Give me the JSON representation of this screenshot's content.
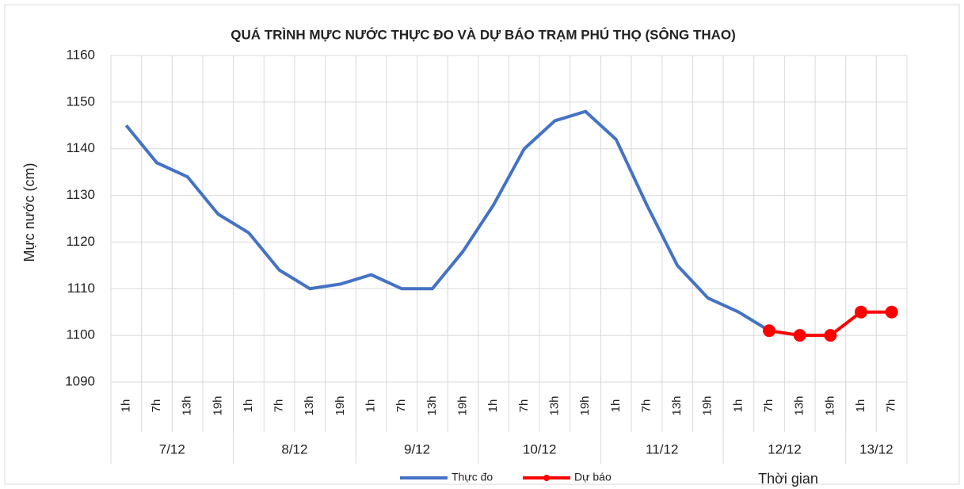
{
  "chart_data": {
    "type": "line",
    "title": "QUÁ TRÌNH MỰC NƯỚC THỰC ĐO VÀ DỰ BÁO TRẠM PHÚ THỌ (SÔNG THAO)",
    "y_label": "Mực nước (cm)",
    "x_label": "Thời gian",
    "categories": [
      "1h",
      "7h",
      "13h",
      "19h",
      "1h",
      "7h",
      "13h",
      "19h",
      "1h",
      "7h",
      "13h",
      "19h",
      "1h",
      "7h",
      "13h",
      "19h",
      "1h",
      "7h",
      "13h",
      "19h",
      "1h",
      "7h",
      "13h",
      "19h",
      "1h",
      "7h"
    ],
    "groups": [
      {
        "label": "7/12",
        "span": 4
      },
      {
        "label": "8/12",
        "span": 4
      },
      {
        "label": "9/12",
        "span": 4
      },
      {
        "label": "10/12",
        "span": 4
      },
      {
        "label": "11/12",
        "span": 4
      },
      {
        "label": "12/12",
        "span": 4
      },
      {
        "label": "13/12",
        "span": 2
      }
    ],
    "series": [
      {
        "name": "Thực đo",
        "color": "#4472c4",
        "markers": false,
        "values": [
          1145,
          1137,
          1134,
          1126,
          1122,
          1114,
          1110,
          1111,
          1113,
          1110,
          1110,
          1118,
          1128,
          1140,
          1146,
          1148,
          1142,
          1128,
          1115,
          1108,
          1105,
          1101,
          null,
          null,
          null,
          null
        ]
      },
      {
        "name": "Dự báo",
        "color": "#ff0000",
        "markers": true,
        "values": [
          null,
          null,
          null,
          null,
          null,
          null,
          null,
          null,
          null,
          null,
          null,
          null,
          null,
          null,
          null,
          null,
          null,
          null,
          null,
          null,
          null,
          1101,
          1100,
          1100,
          1105,
          1105
        ]
      }
    ],
    "ylim": [
      1090,
      1160
    ],
    "yticks": [
      1090,
      1100,
      1110,
      1120,
      1130,
      1140,
      1150,
      1160
    ],
    "grid": true,
    "legend": "bottom"
  }
}
